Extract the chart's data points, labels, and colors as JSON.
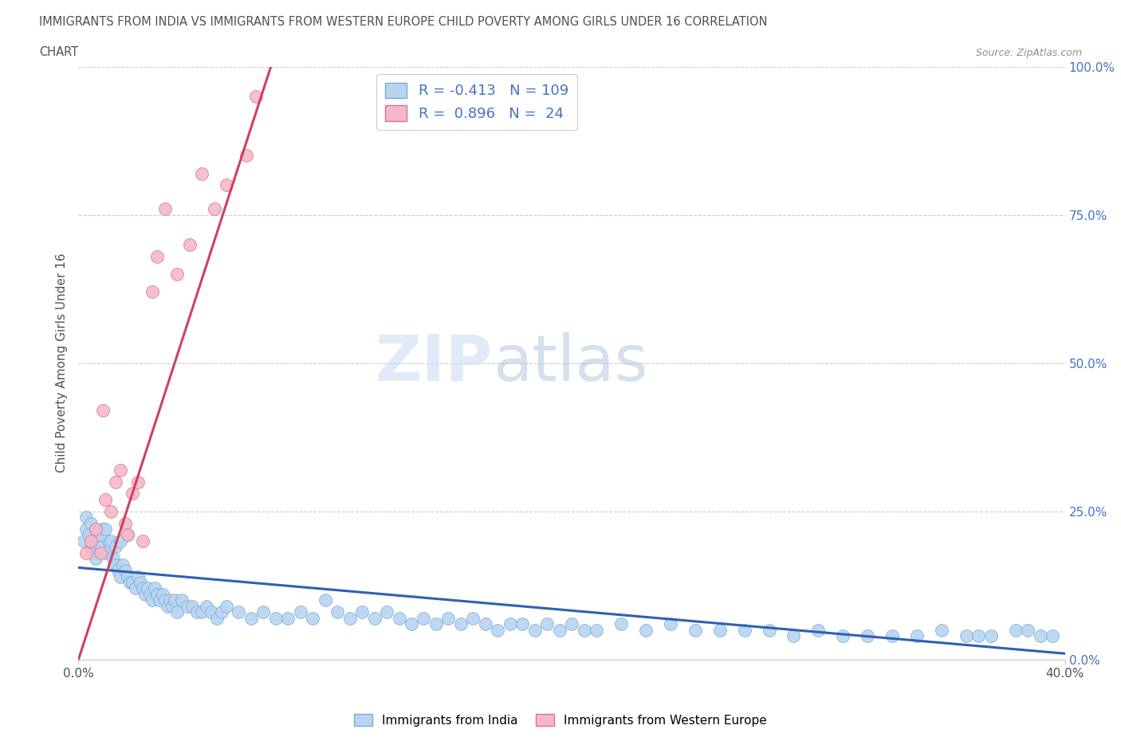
{
  "title_line1": "IMMIGRANTS FROM INDIA VS IMMIGRANTS FROM WESTERN EUROPE CHILD POVERTY AMONG GIRLS UNDER 16 CORRELATION",
  "title_line2": "CHART",
  "source_text": "Source: ZipAtlas.com",
  "ylabel": "Child Poverty Among Girls Under 16",
  "ytick_values": [
    0,
    25,
    50,
    75,
    100
  ],
  "xlim": [
    0,
    40
  ],
  "ylim": [
    0,
    100
  ],
  "watermark_part1": "ZIP",
  "watermark_part2": "atlas",
  "R1": -0.413,
  "N1": 109,
  "R2": 0.896,
  "N2": 24,
  "color_india": "#b8d4f0",
  "color_india_edge": "#7aaad8",
  "color_europe": "#f4b8c8",
  "color_europe_edge": "#e07090",
  "color_india_line": "#3060b0",
  "color_europe_line": "#d04060",
  "color_title": "#505050",
  "color_source": "#909090",
  "color_yticks_right": "#4472c4",
  "color_xticks": "#505050",
  "color_grid": "#cccccc",
  "legend_label1": "Immigrants from India",
  "legend_label2": "Immigrants from Western Europe",
  "india_x": [
    0.2,
    0.3,
    0.4,
    0.5,
    0.6,
    0.7,
    0.8,
    0.9,
    1.0,
    1.1,
    1.2,
    1.3,
    1.4,
    1.5,
    1.6,
    1.7,
    1.8,
    1.9,
    2.0,
    2.1,
    2.2,
    2.3,
    2.4,
    2.5,
    2.6,
    2.7,
    2.8,
    2.9,
    3.0,
    3.1,
    3.2,
    3.3,
    3.4,
    3.5,
    3.6,
    3.7,
    3.8,
    3.9,
    4.0,
    4.2,
    4.4,
    4.6,
    4.8,
    5.0,
    5.2,
    5.4,
    5.6,
    5.8,
    6.0,
    6.5,
    7.0,
    7.5,
    8.0,
    8.5,
    9.0,
    9.5,
    10.0,
    10.5,
    11.0,
    11.5,
    12.0,
    12.5,
    13.0,
    13.5,
    14.0,
    14.5,
    15.0,
    15.5,
    16.0,
    16.5,
    17.0,
    17.5,
    18.0,
    18.5,
    19.0,
    19.5,
    20.0,
    20.5,
    21.0,
    22.0,
    23.0,
    24.0,
    25.0,
    26.0,
    27.0,
    28.0,
    29.0,
    30.0,
    31.0,
    32.0,
    33.0,
    34.0,
    35.0,
    36.0,
    36.5,
    37.0,
    38.0,
    38.5,
    39.0,
    39.5,
    0.3,
    0.5,
    0.7,
    0.9,
    1.1,
    1.3,
    1.5,
    1.7,
    2.0
  ],
  "india_y": [
    20,
    22,
    21,
    19,
    18,
    17,
    20,
    19,
    22,
    18,
    20,
    19,
    17,
    16,
    15,
    14,
    16,
    15,
    14,
    13,
    13,
    12,
    14,
    13,
    12,
    11,
    12,
    11,
    10,
    12,
    11,
    10,
    11,
    10,
    9,
    10,
    9,
    10,
    8,
    10,
    9,
    9,
    8,
    8,
    9,
    8,
    7,
    8,
    9,
    8,
    7,
    8,
    7,
    7,
    8,
    7,
    10,
    8,
    7,
    8,
    7,
    8,
    7,
    6,
    7,
    6,
    7,
    6,
    7,
    6,
    5,
    6,
    6,
    5,
    6,
    5,
    6,
    5,
    5,
    6,
    5,
    6,
    5,
    5,
    5,
    5,
    4,
    5,
    4,
    4,
    4,
    4,
    5,
    4,
    4,
    4,
    5,
    5,
    4,
    4,
    24,
    23,
    22,
    21,
    22,
    20,
    19,
    20,
    21
  ],
  "europe_x": [
    0.3,
    0.5,
    0.7,
    0.9,
    1.0,
    1.1,
    1.3,
    1.5,
    1.7,
    1.9,
    2.0,
    2.2,
    2.4,
    2.6,
    3.0,
    3.2,
    3.5,
    4.0,
    4.5,
    5.0,
    5.5,
    6.0,
    6.8,
    7.2
  ],
  "europe_y": [
    18,
    20,
    22,
    18,
    42,
    27,
    25,
    30,
    32,
    23,
    21,
    28,
    30,
    20,
    62,
    68,
    76,
    65,
    70,
    82,
    76,
    80,
    85,
    95
  ],
  "india_trend_x0": 0,
  "india_trend_y0": 15.5,
  "india_trend_x1": 40,
  "india_trend_y1": 1.0,
  "europe_trend_x0": 0.0,
  "europe_trend_y0": 0.0,
  "europe_trend_x1": 7.8,
  "europe_trend_y1": 100.0
}
